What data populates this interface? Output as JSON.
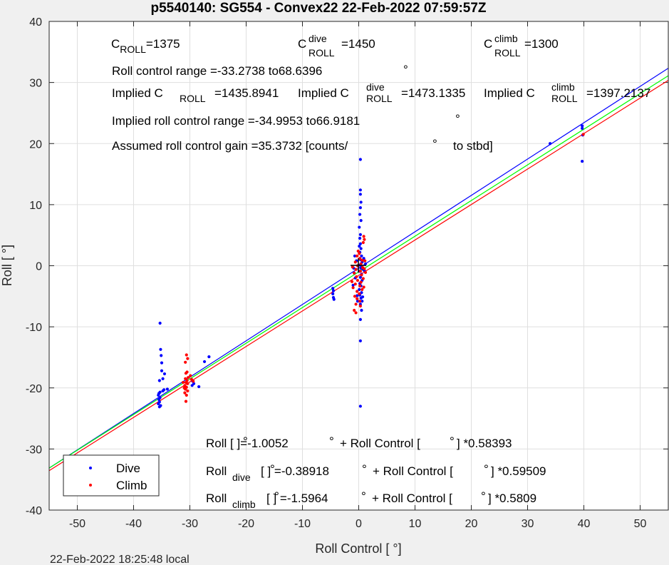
{
  "chart_data": {
    "type": "scatter",
    "title": "p5540140: SG554 - Convex22 22-Feb-2022 07:59:57Z",
    "xlabel": "Roll Control [   °]",
    "ylabel": "Roll [  °]",
    "xlim": [
      -55,
      55
    ],
    "ylim": [
      -40,
      40
    ],
    "xticks": [
      -50,
      -40,
      -30,
      -20,
      -10,
      0,
      10,
      20,
      30,
      40,
      50
    ],
    "yticks": [
      -40,
      -30,
      -20,
      -10,
      0,
      10,
      20,
      30,
      40
    ],
    "grid": true,
    "legend_position": "bottom-left",
    "series": [
      {
        "name": "Dive",
        "color": "#0000ff",
        "points": [
          [
            -35.3,
            -9.4
          ],
          [
            -35.2,
            -13.7
          ],
          [
            -35.1,
            -14.7
          ],
          [
            -35.0,
            -15.9
          ],
          [
            -35.0,
            -17.2
          ],
          [
            -34.8,
            -18.5
          ],
          [
            -35.4,
            -18.8
          ],
          [
            -34.5,
            -17.7
          ],
          [
            -34.6,
            -20.3
          ],
          [
            -34.8,
            -20.5
          ],
          [
            -35.3,
            -20.7
          ],
          [
            -35.5,
            -20.9
          ],
          [
            -35.6,
            -21.2
          ],
          [
            -35.3,
            -21.6
          ],
          [
            -35.5,
            -21.9
          ],
          [
            -35.4,
            -22.3
          ],
          [
            -35.6,
            -22.6
          ],
          [
            -35.2,
            -22.9
          ],
          [
            -35.4,
            -23.1
          ],
          [
            -34.0,
            -20.2
          ],
          [
            -29.5,
            -18.9
          ],
          [
            -29.3,
            -19.3
          ],
          [
            -29.6,
            -19.6
          ],
          [
            -28.4,
            -19.8
          ],
          [
            -27.4,
            -15.7
          ],
          [
            -26.6,
            -14.9
          ],
          [
            -4.6,
            -3.7
          ],
          [
            -4.5,
            -4.1
          ],
          [
            -4.6,
            -4.6
          ],
          [
            -4.5,
            -5.2
          ],
          [
            -4.4,
            -5.5
          ],
          [
            0.3,
            17.4
          ],
          [
            0.3,
            12.4
          ],
          [
            0.3,
            11.7
          ],
          [
            0.4,
            10.4
          ],
          [
            0.3,
            9.5
          ],
          [
            0.2,
            8.4
          ],
          [
            0.4,
            7.4
          ],
          [
            0.1,
            6.3
          ],
          [
            0.3,
            5.1
          ],
          [
            0.2,
            4.5
          ],
          [
            0.3,
            3.6
          ],
          [
            0.1,
            3.2
          ],
          [
            0.4,
            2.8
          ],
          [
            0.2,
            2.2
          ],
          [
            0.5,
            1.6
          ],
          [
            0.3,
            1.0
          ],
          [
            0.6,
            0.6
          ],
          [
            0.2,
            0.1
          ],
          [
            0.4,
            -0.4
          ],
          [
            0.1,
            -0.9
          ],
          [
            0.5,
            -1.4
          ],
          [
            0.3,
            -1.9
          ],
          [
            0.6,
            -2.4
          ],
          [
            0.2,
            -2.9
          ],
          [
            0.4,
            -3.3
          ],
          [
            0.1,
            -3.9
          ],
          [
            0.5,
            -4.4
          ],
          [
            0.2,
            -4.8
          ],
          [
            0.4,
            -5.3
          ],
          [
            0.6,
            -5.8
          ],
          [
            0.3,
            -6.3
          ],
          [
            0.5,
            -7.3
          ],
          [
            0.3,
            -8.8
          ],
          [
            0.3,
            -12.3
          ],
          [
            0.3,
            -23.0
          ],
          [
            -0.4,
            0.8
          ],
          [
            -0.8,
            -1.2
          ],
          [
            -0.6,
            -2.0
          ],
          [
            -0.9,
            -0.4
          ],
          [
            -0.7,
            1.6
          ],
          [
            0.8,
            -0.6
          ],
          [
            0.9,
            1.2
          ],
          [
            -0.3,
            -4.9
          ],
          [
            -0.2,
            -5.8
          ],
          [
            1.0,
            -0.8
          ],
          [
            1.2,
            0.3
          ],
          [
            -1.0,
            -3.2
          ],
          [
            0.7,
            -5.1
          ],
          [
            34.0,
            20.0
          ],
          [
            39.7,
            22.5
          ],
          [
            39.7,
            22.9
          ],
          [
            39.8,
            21.4
          ],
          [
            39.7,
            17.1
          ]
        ]
      },
      {
        "name": "Climb",
        "color": "#ff0000",
        "points": [
          [
            -30.6,
            -14.6
          ],
          [
            -30.4,
            -15.2
          ],
          [
            -30.8,
            -15.8
          ],
          [
            -30.5,
            -17.4
          ],
          [
            -30.7,
            -17.6
          ],
          [
            -29.9,
            -18.0
          ],
          [
            -30.3,
            -18.3
          ],
          [
            -30.8,
            -18.5
          ],
          [
            -30.5,
            -18.8
          ],
          [
            -30.7,
            -19.1
          ],
          [
            -30.4,
            -19.3
          ],
          [
            -30.9,
            -19.6
          ],
          [
            -30.6,
            -19.9
          ],
          [
            -30.8,
            -20.2
          ],
          [
            -30.4,
            -20.5
          ],
          [
            -30.9,
            -20.8
          ],
          [
            -30.6,
            -21.2
          ],
          [
            -30.7,
            -22.2
          ],
          [
            -31.2,
            -19.1
          ],
          [
            -31.0,
            -20.0
          ],
          [
            -29.7,
            -18.6
          ],
          [
            -29.4,
            -18.9
          ],
          [
            0.9,
            4.8
          ],
          [
            1.0,
            4.3
          ],
          [
            0.8,
            3.8
          ],
          [
            -0.1,
            2.4
          ],
          [
            0.1,
            2.0
          ],
          [
            -0.3,
            1.6
          ],
          [
            0.2,
            1.2
          ],
          [
            0.6,
            0.9
          ],
          [
            -0.6,
            0.6
          ],
          [
            0.4,
            0.3
          ],
          [
            -0.2,
            0.0
          ],
          [
            0.7,
            -0.3
          ],
          [
            -0.5,
            -0.6
          ],
          [
            0.3,
            -0.9
          ],
          [
            -0.8,
            -1.2
          ],
          [
            0.5,
            -1.5
          ],
          [
            -0.4,
            -1.8
          ],
          [
            0.8,
            -2.1
          ],
          [
            -0.2,
            -2.4
          ],
          [
            0.4,
            -2.7
          ],
          [
            -0.6,
            -3.0
          ],
          [
            0.2,
            -3.3
          ],
          [
            -1.0,
            -3.6
          ],
          [
            0.6,
            -3.9
          ],
          [
            -0.3,
            -4.2
          ],
          [
            0.1,
            -4.6
          ],
          [
            -0.7,
            -5.0
          ],
          [
            -0.3,
            -5.4
          ],
          [
            0.2,
            -5.8
          ],
          [
            -0.5,
            -6.3
          ],
          [
            0.3,
            -6.6
          ],
          [
            -0.8,
            -7.3
          ],
          [
            -0.5,
            -7.7
          ],
          [
            1.0,
            -0.5
          ],
          [
            1.2,
            -1.1
          ],
          [
            -1.1,
            -0.2
          ],
          [
            -1.2,
            -2.6
          ],
          [
            1.1,
            0.8
          ],
          [
            0.9,
            -3.5
          ],
          [
            39.9,
            21.5
          ]
        ]
      }
    ],
    "fit_lines": [
      {
        "name": "dive-fit",
        "color": "#0000ff",
        "intercept": -0.38918,
        "slope": 0.59509
      },
      {
        "name": "overall-fit",
        "color": "#00ff00",
        "intercept": -1.0052,
        "slope": 0.58393
      },
      {
        "name": "climb-fit",
        "color": "#ff0000",
        "intercept": -1.5964,
        "slope": 0.5809
      }
    ],
    "legend": [
      "Dive",
      "Climb"
    ]
  },
  "annotations": {
    "c_roll": "=1375",
    "c_roll_dive": "=1450",
    "c_roll_climb": "=1300",
    "roll_control_range": "Roll control range =-33.2738 to68.6396",
    "implied_c": "Implied C",
    "implied_c_roll_value": "=1435.8941",
    "implied_c_dive_value": "=1473.1335",
    "implied_c_climb_value": "=1397.2137",
    "implied_roll_range": "Implied roll control range =-34.9953 to66.9181",
    "assumed_gain": "Assumed roll control gain =35.3732 [counts/",
    "assumed_gain_suffix": "to stbd]",
    "eq_overall_a": "Roll [  ]=-1.0052",
    "eq_overall_b": "+ Roll Control [",
    "eq_overall_c": "] *0.58393",
    "eq_dive_b": "[  ] =-0.38918",
    "eq_dive_c": "+ Roll Control [",
    "eq_dive_d": "] *0.59509",
    "eq_climb_b": "[  ] =-1.5964",
    "eq_climb_c": "+ Roll Control [",
    "eq_climb_d": "] *0.5809",
    "roll_word": "Roll",
    "sub_roll": "ROLL",
    "sub_dive": "dive",
    "sub_climb": "climb",
    "c_letter": "C",
    "degree": "°"
  },
  "footer_timestamp": "22-Feb-2022 18:25:48 local"
}
